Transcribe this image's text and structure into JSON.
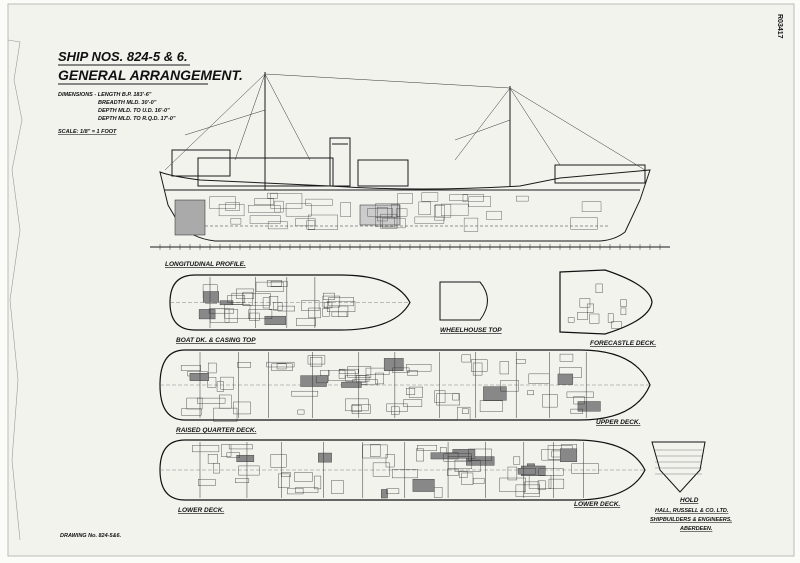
{
  "header": {
    "title": "SHIP NOS. 824-5 & 6.",
    "subtitle": "GENERAL ARRANGEMENT."
  },
  "dimensions": {
    "lines": [
      "DIMENSIONS - LENGTH B.P. 183'-6\"",
      "BREADTH MLD. 30'-0\"",
      "DEPTH MLD. TO U.D. 16'-0\"",
      "DEPTH MLD. TO R.Q.D. 17'-0\""
    ],
    "scale": "SCALE: 1/8\" = 1 FOOT"
  },
  "view_labels": {
    "profile": "LONGITUDINAL PROFILE.",
    "boat_deck": "BOAT DK. & CASING TOP",
    "wheelhouse_top": "WHEELHOUSE TOP",
    "forecastle": "FORECASTLE DECK.",
    "raised_quarter": "RAISED QUARTER DECK.",
    "upper": "UPPER DECK.",
    "lower_aft": "LOWER DECK.",
    "lower_fwd": "LOWER DECK.",
    "hold": "HOLD"
  },
  "builder": {
    "lines": [
      "HALL, RUSSELL & CO. LTD.",
      "SHIPBUILDERS & ENGINEERS,",
      "ABERDEEN."
    ]
  },
  "drawing_number": "DRAWING No. 824-5&6.",
  "stamp": "R03417"
}
